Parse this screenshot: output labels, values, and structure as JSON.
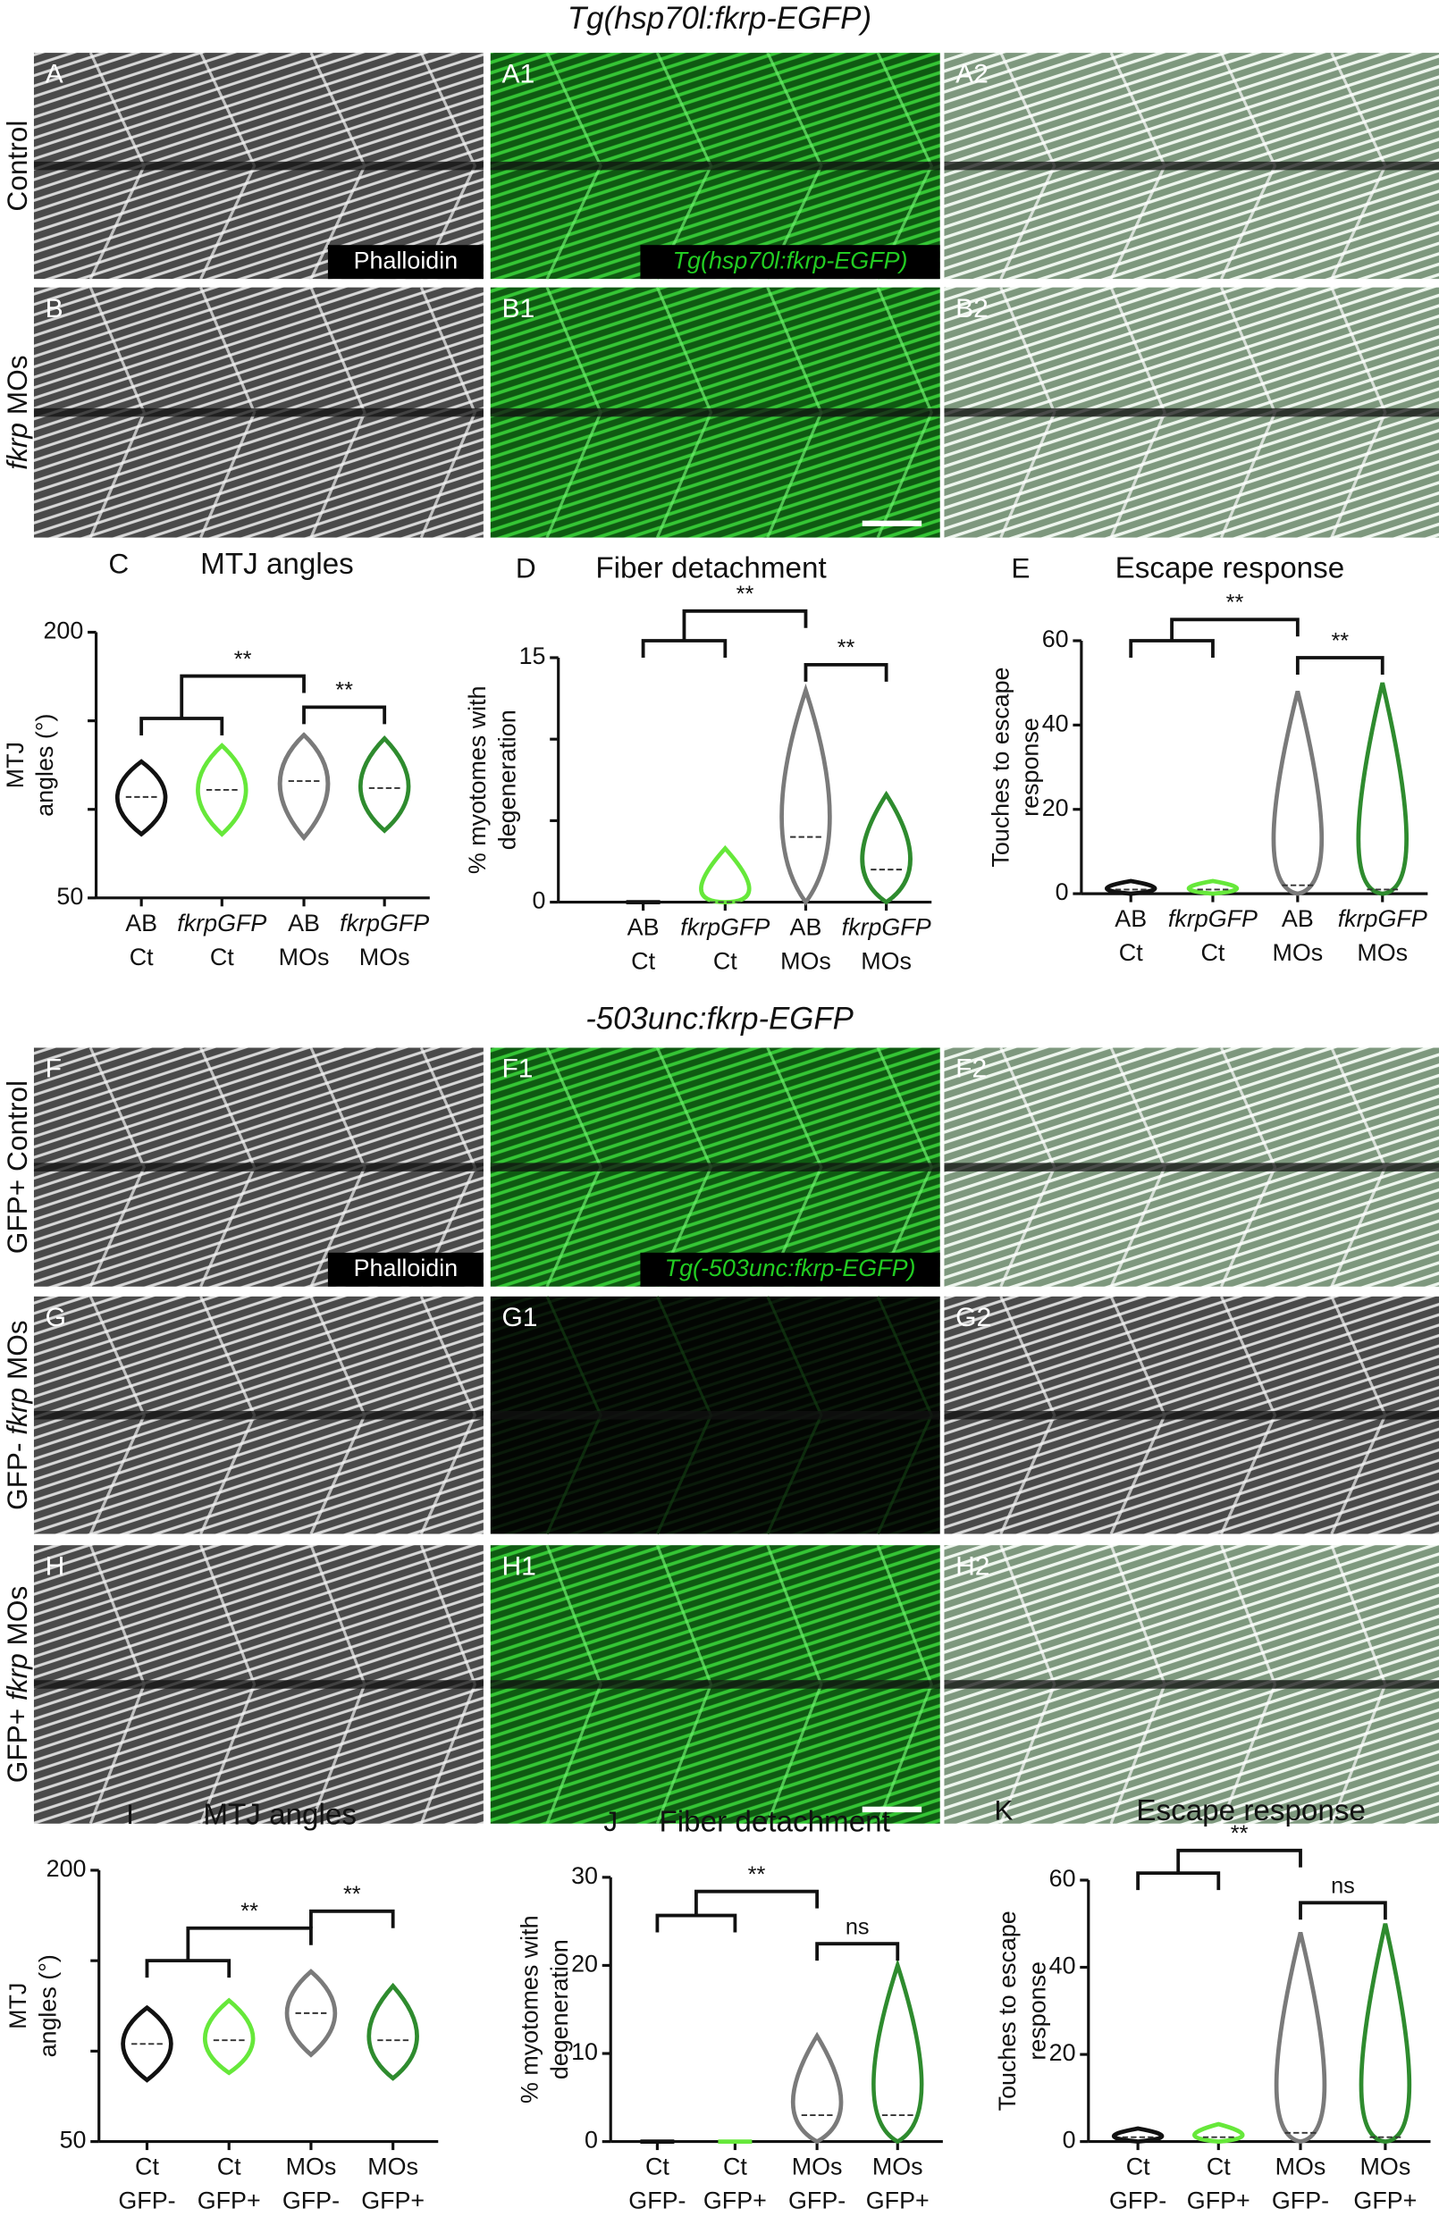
{
  "sections": [
    {
      "title": "Tg(hsp70l:fkrp-EGFP)",
      "inset_gray": "Phalloidin",
      "inset_green": "Tg(hsp70l:fkrp-EGFP)",
      "rows": [
        {
          "label_parts": [
            {
              "text": "Control"
            }
          ],
          "panels": [
            "A",
            "A1",
            "A2"
          ]
        },
        {
          "label_parts": [
            {
              "text": "fkrp",
              "italic": true
            },
            {
              "text": " MOs"
            }
          ],
          "panels": [
            "B",
            "B1",
            "B2"
          ]
        }
      ]
    },
    {
      "title": "-503unc:fkrp-EGFP",
      "inset_gray": "Phalloidin",
      "inset_green": "Tg(-503unc:fkrp-EGFP)",
      "rows": [
        {
          "label_parts": [
            {
              "text": "GFP+ Control"
            }
          ],
          "panels": [
            "F",
            "F1",
            "F2"
          ]
        },
        {
          "label_parts": [
            {
              "text": "GFP- "
            },
            {
              "text": "fkrp",
              "italic": true
            },
            {
              "text": " MOs"
            }
          ],
          "panels": [
            "G",
            "G1",
            "G2"
          ]
        },
        {
          "label_parts": [
            {
              "text": "GFP+ "
            },
            {
              "text": "fkrp",
              "italic": true
            },
            {
              "text": " MOs"
            }
          ],
          "panels": [
            "H",
            "H1",
            "H2"
          ]
        }
      ]
    }
  ],
  "chart_data": [
    {
      "type": "violin",
      "letter": "C",
      "title": "MTJ angles",
      "y_label": [
        "MTJ",
        "angles (°)"
      ],
      "ylim": [
        50,
        200
      ],
      "yticks": [
        50,
        200
      ],
      "minor_yticks": [
        100,
        150
      ],
      "categories": [
        [
          "AB",
          "Ct"
        ],
        [
          "fkrpGFP",
          "Ct"
        ],
        [
          "AB",
          "MOs"
        ],
        [
          "fkrpGFP",
          "MOs"
        ]
      ],
      "italic_labels": [
        "fkrpGFP"
      ],
      "groups": [
        {
          "color": "#111111",
          "min": 86,
          "median": 107,
          "max": 127
        },
        {
          "color": "#66e83a",
          "min": 86,
          "median": 111,
          "max": 136
        },
        {
          "color": "#7a7a7a",
          "min": 84,
          "median": 116,
          "max": 142
        },
        {
          "color": "#2e8b2e",
          "min": 88,
          "median": 112,
          "max": 140
        }
      ],
      "annotations": [
        "**",
        "**"
      ]
    },
    {
      "type": "violin",
      "letter": "D",
      "title": "Fiber detachment",
      "y_label": [
        "% myotomes with",
        "degeneration"
      ],
      "ylim": [
        0,
        15
      ],
      "yticks": [
        0,
        15
      ],
      "minor_yticks": [
        5,
        10
      ],
      "categories": [
        [
          "AB",
          "Ct"
        ],
        [
          "fkrpGFP",
          "Ct"
        ],
        [
          "AB",
          "MOs"
        ],
        [
          "fkrpGFP",
          "MOs"
        ]
      ],
      "italic_labels": [
        "fkrpGFP"
      ],
      "groups": [
        {
          "color": "#111111",
          "min": 0,
          "median": 0,
          "max": 0
        },
        {
          "color": "#66e83a",
          "min": 0,
          "median": 0,
          "max": 3.3
        },
        {
          "color": "#7a7a7a",
          "min": 0,
          "median": 4,
          "max": 13
        },
        {
          "color": "#2e8b2e",
          "min": 0,
          "median": 2,
          "max": 6.6
        }
      ],
      "annotations": [
        "**",
        "**"
      ]
    },
    {
      "type": "violin",
      "letter": "E",
      "title": "Escape response",
      "y_label": [
        "Touches to escape",
        "response"
      ],
      "ylim": [
        0,
        60
      ],
      "yticks": [
        0,
        20,
        40,
        60
      ],
      "minor_yticks": [],
      "categories": [
        [
          "AB",
          "Ct"
        ],
        [
          "fkrpGFP",
          "Ct"
        ],
        [
          "AB",
          "MOs"
        ],
        [
          "fkrpGFP",
          "MOs"
        ]
      ],
      "italic_labels": [
        "fkrpGFP"
      ],
      "groups": [
        {
          "color": "#111111",
          "min": 0,
          "median": 1,
          "max": 3
        },
        {
          "color": "#66e83a",
          "min": 0,
          "median": 1,
          "max": 3
        },
        {
          "color": "#7a7a7a",
          "min": 0,
          "median": 2,
          "max": 48
        },
        {
          "color": "#2e8b2e",
          "min": 0,
          "median": 1,
          "max": 50
        }
      ],
      "annotations": [
        "**",
        "**"
      ]
    },
    {
      "type": "violin",
      "letter": "I",
      "title": "MTJ angles",
      "y_label": [
        "MTJ",
        "angles (°)"
      ],
      "ylim": [
        50,
        200
      ],
      "yticks": [
        50,
        200
      ],
      "minor_yticks": [
        100,
        150
      ],
      "categories": [
        [
          "Ct",
          "GFP-"
        ],
        [
          "Ct",
          "GFP+"
        ],
        [
          "MOs",
          "GFP-"
        ],
        [
          "MOs",
          "GFP+"
        ]
      ],
      "italic_labels": [],
      "groups": [
        {
          "color": "#111111",
          "min": 84,
          "median": 104,
          "max": 124
        },
        {
          "color": "#66e83a",
          "min": 88,
          "median": 106,
          "max": 128
        },
        {
          "color": "#7a7a7a",
          "min": 98,
          "median": 121,
          "max": 144
        },
        {
          "color": "#2e8b2e",
          "min": 85,
          "median": 106,
          "max": 136
        }
      ],
      "annotations": [
        "**",
        "**"
      ]
    },
    {
      "type": "violin",
      "letter": "J",
      "title": "Fiber detachment",
      "y_label": [
        "% myotomes with",
        "degeneration"
      ],
      "ylim": [
        0,
        30
      ],
      "yticks": [
        0,
        10,
        20,
        30
      ],
      "minor_yticks": [],
      "categories": [
        [
          "Ct",
          "GFP-"
        ],
        [
          "Ct",
          "GFP+"
        ],
        [
          "MOs",
          "GFP-"
        ],
        [
          "MOs",
          "GFP+"
        ]
      ],
      "italic_labels": [],
      "groups": [
        {
          "color": "#111111",
          "min": 0,
          "median": 0,
          "max": 0
        },
        {
          "color": "#66e83a",
          "min": 0,
          "median": 0,
          "max": 0
        },
        {
          "color": "#7a7a7a",
          "min": 0,
          "median": 3,
          "max": 12
        },
        {
          "color": "#2e8b2e",
          "min": 0,
          "median": 3,
          "max": 20
        }
      ],
      "annotations": [
        "**",
        "ns"
      ]
    },
    {
      "type": "violin",
      "letter": "K",
      "title": "Escape response",
      "y_label": [
        "Touches to escape",
        "response"
      ],
      "ylim": [
        0,
        60
      ],
      "yticks": [
        0,
        20,
        40,
        60
      ],
      "minor_yticks": [],
      "categories": [
        [
          "Ct",
          "GFP-"
        ],
        [
          "Ct",
          "GFP+"
        ],
        [
          "MOs",
          "GFP-"
        ],
        [
          "MOs",
          "GFP+"
        ]
      ],
      "italic_labels": [],
      "groups": [
        {
          "color": "#111111",
          "min": 0,
          "median": 1,
          "max": 3
        },
        {
          "color": "#66e83a",
          "min": 0,
          "median": 1,
          "max": 4
        },
        {
          "color": "#7a7a7a",
          "min": 0,
          "median": 2,
          "max": 48
        },
        {
          "color": "#2e8b2e",
          "min": 0,
          "median": 1,
          "max": 50
        }
      ],
      "annotations": [
        "**",
        "ns"
      ]
    }
  ]
}
